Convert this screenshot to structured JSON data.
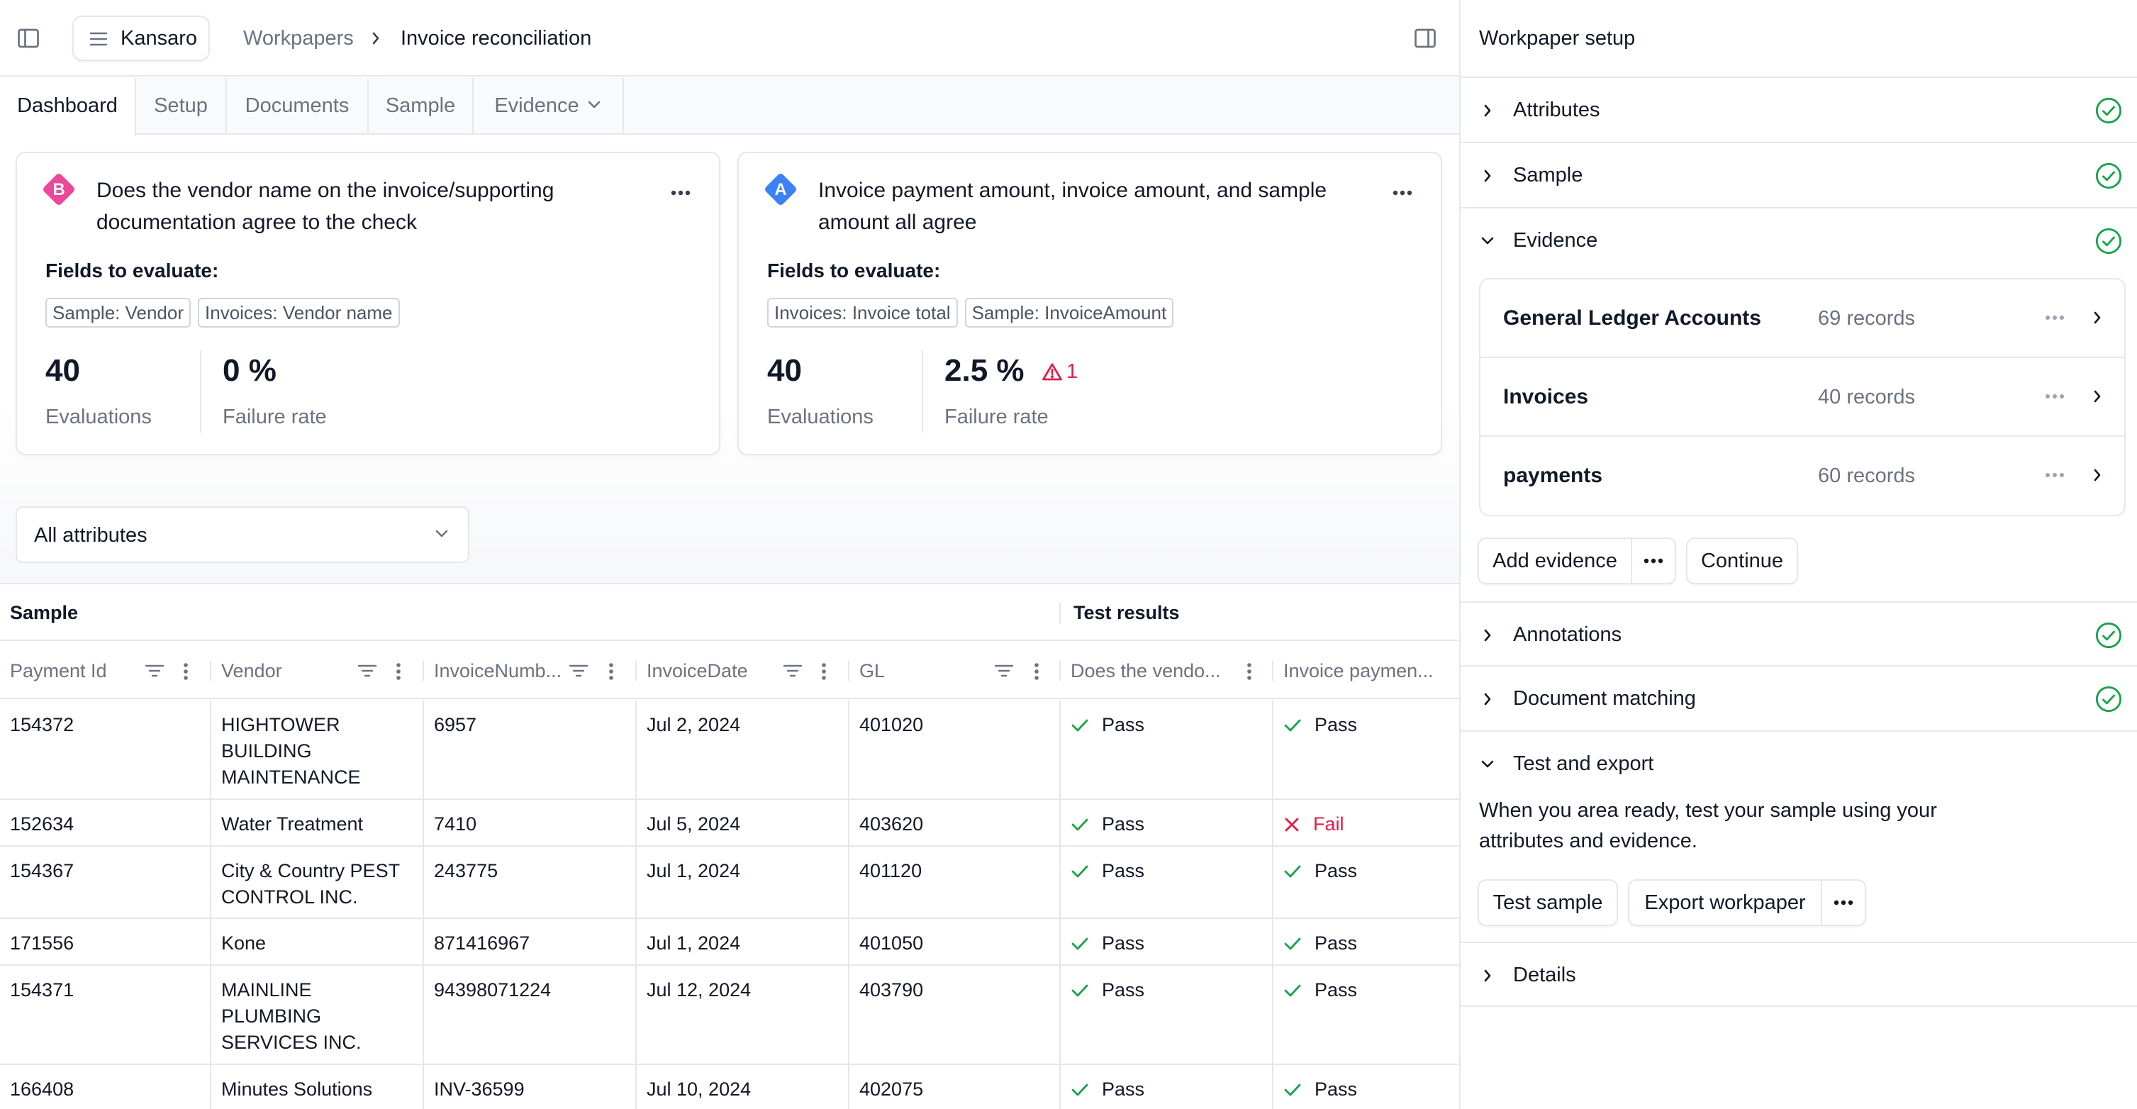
{
  "header": {
    "brand": "Kansaro",
    "breadcrumb": {
      "parent": "Workpapers",
      "current": "Invoice reconciliation"
    }
  },
  "tabs": [
    {
      "label": "Dashboard",
      "active": true
    },
    {
      "label": "Setup"
    },
    {
      "label": "Documents"
    },
    {
      "label": "Sample"
    },
    {
      "label": "Evidence",
      "has_dropdown": true
    }
  ],
  "cards": [
    {
      "badge": "B",
      "badge_color": "#ec4899",
      "question": "Does the vendor name on the invoice/supporting documentation agree to the check",
      "fields_title": "Fields to evaluate:",
      "fields": [
        "Sample: Vendor",
        "Invoices: Vendor name"
      ],
      "evaluations": "40",
      "evaluations_label": "Evaluations",
      "failure_rate": "0 %",
      "failure_label": "Failure rate"
    },
    {
      "badge": "A",
      "badge_color": "#3b82f6",
      "question": "Invoice payment amount, invoice amount, and sample amount all agree",
      "fields_title": "Fields to evaluate:",
      "fields": [
        "Invoices: Invoice total",
        "Sample: InvoiceAmount"
      ],
      "evaluations": "40",
      "evaluations_label": "Evaluations",
      "failure_rate": "2.5 %",
      "failure_label": "Failure rate",
      "warning_count": "1"
    }
  ],
  "filter": {
    "selected": "All attributes"
  },
  "table": {
    "groups": {
      "sample": "Sample",
      "results": "Test results"
    },
    "columns": [
      "Payment Id",
      "Vendor",
      "InvoiceNumb...",
      "InvoiceDate",
      "GL",
      "Does the vendo...",
      "Invoice paymen..."
    ],
    "rows": [
      {
        "payment_id": "154372",
        "vendor": "HIGHTOWER BUILDING MAINTENANCE",
        "invoice_number": "6957",
        "invoice_date": "Jul 2, 2024",
        "gl": "401020",
        "r1": "Pass",
        "r2": "Pass"
      },
      {
        "payment_id": "152634",
        "vendor": "Water Treatment",
        "invoice_number": "7410",
        "invoice_date": "Jul 5, 2024",
        "gl": "403620",
        "r1": "Pass",
        "r2": "Fail"
      },
      {
        "payment_id": "154367",
        "vendor": "City & Country PEST CONTROL INC.",
        "invoice_number": "243775",
        "invoice_date": "Jul 1, 2024",
        "gl": "401120",
        "r1": "Pass",
        "r2": "Pass"
      },
      {
        "payment_id": "171556",
        "vendor": "Kone",
        "invoice_number": "871416967",
        "invoice_date": "Jul 1, 2024",
        "gl": "401050",
        "r1": "Pass",
        "r2": "Pass"
      },
      {
        "payment_id": "154371",
        "vendor": "MAINLINE PLUMBING SERVICES INC.",
        "invoice_number": "94398071224",
        "invoice_date": "Jul 12, 2024",
        "gl": "403790",
        "r1": "Pass",
        "r2": "Pass"
      },
      {
        "payment_id": "166408",
        "vendor": "Minutes Solutions",
        "invoice_number": "INV-36599",
        "invoice_date": "Jul 10, 2024",
        "gl": "402075",
        "r1": "Pass",
        "r2": "Pass"
      }
    ]
  },
  "setup_panel": {
    "title": "Workpaper setup",
    "sections": {
      "attributes": "Attributes",
      "sample": "Sample",
      "evidence": "Evidence",
      "annotations": "Annotations",
      "document_matching": "Document matching",
      "test_export": "Test and export",
      "details": "Details"
    },
    "evidence_items": [
      {
        "name": "General Ledger Accounts",
        "count": "69 records"
      },
      {
        "name": "Invoices",
        "count": "40 records"
      },
      {
        "name": "payments",
        "count": "60 records"
      }
    ],
    "buttons": {
      "add_evidence": "Add evidence",
      "continue": "Continue",
      "test_sample": "Test sample",
      "export_workpaper": "Export workpaper"
    },
    "test_help": "When you area ready, test your sample using your attributes and evidence."
  },
  "colors": {
    "pass": "#16a34a",
    "fail": "#e11d48",
    "accent_ok": "#16a34a"
  }
}
